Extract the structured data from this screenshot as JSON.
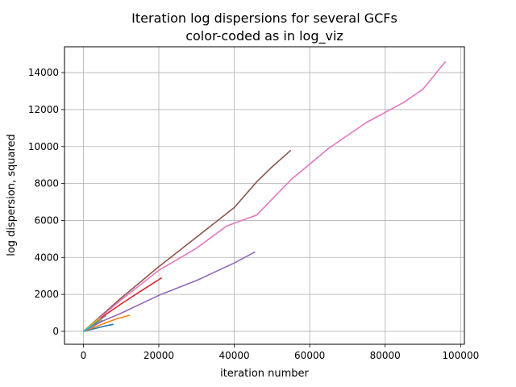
{
  "chart_data": {
    "type": "line",
    "title": "Iteration log dispersions for several GCFs",
    "subtitle": "color-coded as in log_viz",
    "xlabel": "iteration number",
    "ylabel": "log dispersion, squared",
    "xlim": [
      -5000,
      101000
    ],
    "ylim": [
      -700,
      15400
    ],
    "xticks": [
      0,
      20000,
      40000,
      60000,
      80000,
      100000
    ],
    "yticks": [
      0,
      2000,
      4000,
      6000,
      8000,
      10000,
      12000,
      14000
    ],
    "grid": true,
    "legend": "none",
    "series": [
      {
        "color": "#1f77b4",
        "x": [
          0,
          2000,
          4000,
          6000,
          8000
        ],
        "y": [
          0,
          100,
          200,
          300,
          380
        ]
      },
      {
        "color": "#ff7f0e",
        "x": [
          0,
          3000,
          6000,
          9000,
          12300
        ],
        "y": [
          0,
          230,
          470,
          690,
          870
        ]
      },
      {
        "color": "#2ca02c",
        "x": [
          0,
          1500,
          3000,
          4500,
          5000
        ],
        "y": [
          0,
          170,
          350,
          520,
          600
        ]
      },
      {
        "color": "#d62728",
        "x": [
          0,
          5000,
          10000,
          15000,
          20800
        ],
        "y": [
          0,
          780,
          1480,
          2150,
          2900
        ]
      },
      {
        "color": "#9467bd",
        "x": [
          0,
          5000,
          10000,
          20000,
          30000,
          40000,
          45500
        ],
        "y": [
          0,
          550,
          980,
          1950,
          2750,
          3700,
          4300
        ]
      },
      {
        "color": "#8c564b",
        "x": [
          0,
          10000,
          20000,
          30000,
          40000,
          46000,
          50000,
          55000
        ],
        "y": [
          0,
          1800,
          3500,
          5100,
          6700,
          8100,
          8900,
          9800
        ]
      },
      {
        "color": "#e377c2",
        "x": [
          0,
          10000,
          20000,
          30000,
          38000,
          46000,
          55000,
          65000,
          75000,
          85000,
          90000,
          96000
        ],
        "y": [
          0,
          1700,
          3300,
          4500,
          5700,
          6300,
          8200,
          9900,
          11300,
          12400,
          13100,
          14600
        ]
      },
      {
        "color": "#7f7f7f",
        "x": [
          0,
          2000,
          4000,
          6000
        ],
        "y": [
          0,
          280,
          560,
          860
        ]
      },
      {
        "color": "#bcbd22",
        "x": [
          0,
          1500,
          3000,
          4500
        ],
        "y": [
          0,
          250,
          500,
          720
        ]
      },
      {
        "color": "#17becf",
        "x": [
          0,
          1000,
          2000,
          2500
        ],
        "y": [
          0,
          130,
          260,
          340
        ]
      }
    ]
  }
}
